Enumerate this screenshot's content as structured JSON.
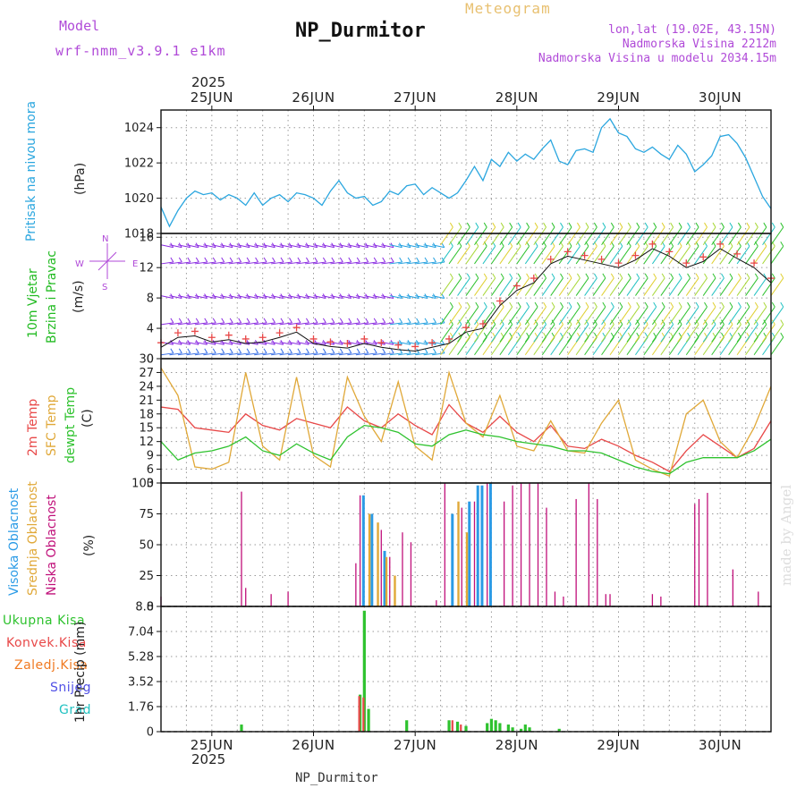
{
  "header": {
    "model_label": "Model",
    "model_name": "wrf-nmm_v3.9.1 e1km",
    "meteogram_label": "Meteogram",
    "station": "NP_Durmitor",
    "coords": "lon,lat (19.02E, 43.15N)",
    "elevation": "Nadmorska Visina 2212m",
    "model_elevation": "Nadmorska Visina u modelu 2034.15m",
    "year": "2025",
    "footer_station": "NP_Durmitor",
    "credit": "made by Angel"
  },
  "colors": {
    "pressure": "#2aa6df",
    "wind_label": "#22bb22",
    "temp2m": "#e84848",
    "sfc": "#e0a838",
    "dewpt": "#2ec22e",
    "high_cloud": "#2b9be6",
    "mid_cloud": "#e0a838",
    "low_cloud": "#c0107a",
    "total_precip": "#2ec22e",
    "conv_precip": "#e84848",
    "frozen": "#f07a22",
    "snow": "#5050e6",
    "hail": "#22c2c2",
    "dir_label": "#b04ad8"
  },
  "days": [
    "25JUN",
    "26JUN",
    "27JUN",
    "28JUN",
    "29JUN",
    "30JUN"
  ],
  "panels": {
    "pressure": {
      "label": "Pritisak na nivou mora",
      "unit": "(hPa)",
      "ticks": [
        "1024",
        "1022",
        "1020",
        "1018"
      ]
    },
    "wind": {
      "label1": "10m Vjetar",
      "label2": "Brzina i Pravac",
      "unit": "(m/s)",
      "ticks": [
        "16",
        "12",
        "8",
        "4",
        "0"
      ],
      "dir_n": "N",
      "dir_w": "W",
      "dir_e": "E",
      "dir_s": "S"
    },
    "temp": {
      "label1": "2m Temp",
      "label2": "SFC Temp",
      "label3": "dewpt Temp",
      "unit": "(C)",
      "ticks": [
        "30",
        "27",
        "24",
        "21",
        "18",
        "15",
        "12",
        "9",
        "6",
        "3"
      ]
    },
    "cloud": {
      "label1": "Visoka Oblacnost",
      "label2": "Srednja Oblacnost",
      "label3": "Niska Oblacnost",
      "unit": "(%)",
      "ticks": [
        "100",
        "75",
        "50",
        "25",
        "0"
      ]
    },
    "precip": {
      "legend": [
        "Ukupna Kisa",
        "Konvek.Kisa",
        "Zaledj.Kisa",
        "Snijeg",
        "Grad"
      ],
      "unit": "1hr Precip (mm)",
      "ticks": [
        "8.8",
        "7.04",
        "5.28",
        "3.52",
        "1.76",
        "0"
      ]
    }
  },
  "chart_data": {
    "type": "line",
    "x_unit": "hours from 25JUN 00 UTC",
    "x_range": [
      -12,
      132
    ],
    "pressure_hpa": {
      "ylim": [
        1018,
        1025
      ],
      "x": [
        -12,
        -10,
        -8,
        -6,
        -4,
        -2,
        0,
        2,
        4,
        6,
        8,
        10,
        12,
        14,
        16,
        18,
        20,
        22,
        24,
        26,
        28,
        30,
        32,
        34,
        36,
        38,
        40,
        42,
        44,
        46,
        48,
        50,
        52,
        54,
        56,
        58,
        60,
        62,
        64,
        66,
        68,
        70,
        72,
        74,
        76,
        78,
        80,
        82,
        84,
        86,
        88,
        90,
        92,
        94,
        96,
        98,
        100,
        102,
        104,
        106,
        108,
        110,
        112,
        114,
        116,
        118,
        120,
        122,
        124,
        126,
        128,
        130,
        132
      ],
      "y": [
        1019.5,
        1018.4,
        1019.3,
        1020.0,
        1020.4,
        1020.2,
        1020.3,
        1019.9,
        1020.2,
        1020.0,
        1019.6,
        1020.3,
        1019.6,
        1020.0,
        1020.2,
        1019.8,
        1020.3,
        1020.2,
        1020.0,
        1019.6,
        1020.4,
        1021.0,
        1020.3,
        1020.0,
        1020.1,
        1019.6,
        1019.8,
        1020.4,
        1020.2,
        1020.7,
        1020.8,
        1020.2,
        1020.6,
        1020.3,
        1020.0,
        1020.3,
        1021.0,
        1021.8,
        1021.0,
        1022.2,
        1021.8,
        1022.6,
        1022.1,
        1022.5,
        1022.2,
        1022.8,
        1023.3,
        1022.1,
        1021.9,
        1022.7,
        1022.8,
        1022.6,
        1024.0,
        1024.5,
        1023.7,
        1023.5,
        1022.8,
        1022.6,
        1022.9,
        1022.5,
        1022.2,
        1023.0,
        1022.5,
        1021.5,
        1021.9,
        1022.4,
        1023.5,
        1023.6,
        1023.1,
        1022.3,
        1021.2,
        1020.1,
        1019.4
      ]
    },
    "wind_speed_ms": {
      "ylim": [
        0,
        16.5
      ],
      "x": [
        -12,
        -8,
        -4,
        0,
        4,
        8,
        12,
        16,
        20,
        24,
        28,
        32,
        36,
        40,
        44,
        48,
        52,
        56,
        60,
        64,
        68,
        72,
        76,
        80,
        84,
        88,
        92,
        96,
        100,
        104,
        108,
        112,
        116,
        120,
        124,
        128,
        132
      ],
      "y": [
        1.5,
        2.8,
        3.0,
        2.2,
        2.5,
        2.0,
        2.2,
        2.8,
        3.5,
        2.0,
        1.6,
        1.4,
        2.0,
        1.5,
        1.2,
        1.0,
        1.5,
        2.0,
        3.5,
        4.0,
        7.0,
        9.0,
        10.0,
        12.5,
        13.5,
        13.0,
        12.5,
        12.0,
        13.0,
        14.5,
        13.5,
        12.0,
        12.8,
        14.5,
        13.2,
        12.0,
        10.0
      ]
    },
    "temperature_c": {
      "ylim": [
        3,
        30
      ],
      "x": [
        -12,
        -8,
        -4,
        0,
        4,
        8,
        12,
        16,
        20,
        24,
        28,
        32,
        36,
        40,
        44,
        48,
        52,
        56,
        60,
        64,
        68,
        72,
        76,
        80,
        84,
        88,
        92,
        96,
        100,
        104,
        108,
        112,
        116,
        120,
        124,
        128,
        132
      ],
      "series": [
        {
          "name": "2m Temp",
          "y": [
            19.5,
            19.0,
            15.0,
            14.5,
            14.0,
            18.0,
            15.5,
            14.5,
            17.0,
            16.0,
            15.0,
            19.5,
            16.5,
            15.0,
            18.0,
            15.5,
            13.5,
            20.0,
            16.0,
            14.0,
            17.5,
            14.0,
            12.0,
            15.5,
            11.0,
            10.5,
            12.5,
            11.0,
            9.0,
            7.5,
            5.5,
            10.0,
            13.5,
            11.0,
            8.5,
            10.5,
            16.5
          ]
        },
        {
          "name": "SFC Temp",
          "y": [
            28.0,
            22.0,
            6.5,
            6.0,
            7.5,
            27.0,
            11.0,
            8.0,
            26.0,
            9.0,
            6.5,
            26.0,
            17.5,
            12.0,
            25.0,
            11.0,
            8.0,
            27.0,
            16.0,
            13.0,
            22.0,
            11.0,
            10.0,
            16.5,
            10.0,
            9.5,
            16.0,
            21.0,
            8.0,
            6.0,
            4.5,
            18.0,
            21.0,
            12.0,
            8.5,
            15.0,
            24.0
          ]
        },
        {
          "name": "dewpt Temp",
          "y": [
            12.0,
            8.0,
            9.5,
            10.0,
            11.0,
            13.0,
            10.0,
            9.0,
            11.5,
            9.5,
            8.0,
            13.0,
            15.5,
            15.0,
            14.0,
            11.5,
            11.0,
            13.5,
            14.5,
            13.5,
            13.0,
            12.0,
            11.5,
            11.0,
            10.0,
            10.0,
            9.5,
            8.0,
            6.5,
            5.5,
            5.0,
            7.5,
            8.5,
            8.5,
            8.5,
            10.0,
            12.5
          ]
        }
      ]
    },
    "cloud_pct": {
      "ylim": [
        0,
        100
      ],
      "high": [
        [
          36,
          90
        ],
        [
          38,
          75
        ],
        [
          41,
          45
        ],
        [
          57,
          75
        ],
        [
          61,
          85
        ],
        [
          63,
          98
        ],
        [
          64,
          98
        ],
        [
          66,
          100
        ]
      ],
      "mid": [
        [
          37,
          75
        ],
        [
          39,
          68
        ],
        [
          41,
          40
        ],
        [
          43,
          25
        ],
        [
          58,
          85
        ],
        [
          60,
          60
        ]
      ],
      "low": [
        [
          -12,
          8
        ],
        [
          7,
          93
        ],
        [
          8,
          15
        ],
        [
          14,
          10
        ],
        [
          18,
          12
        ],
        [
          34,
          35
        ],
        [
          35,
          90
        ],
        [
          40,
          62
        ],
        [
          42,
          40
        ],
        [
          45,
          60
        ],
        [
          47,
          52
        ],
        [
          53,
          5
        ],
        [
          55,
          100
        ],
        [
          59,
          80
        ],
        [
          62,
          85
        ],
        [
          65,
          100
        ],
        [
          69,
          85
        ],
        [
          71,
          98
        ],
        [
          73,
          100
        ],
        [
          75,
          100
        ],
        [
          77,
          100
        ],
        [
          79,
          80
        ],
        [
          81,
          12
        ],
        [
          83,
          8
        ],
        [
          86,
          87
        ],
        [
          89,
          100
        ],
        [
          91,
          87
        ],
        [
          93,
          10
        ],
        [
          94,
          10
        ],
        [
          104,
          10
        ],
        [
          106,
          8
        ],
        [
          114,
          83
        ],
        [
          115,
          87
        ],
        [
          117,
          92
        ],
        [
          123,
          30
        ],
        [
          129,
          12
        ]
      ]
    },
    "precip_mm": {
      "ylim": [
        0,
        8.8
      ],
      "total": [
        [
          7,
          0.5
        ],
        [
          35,
          2.6
        ],
        [
          36,
          8.5
        ],
        [
          37,
          1.6
        ],
        [
          46,
          0.8
        ],
        [
          56,
          0.8
        ],
        [
          58,
          0.7
        ],
        [
          60,
          0.4
        ],
        [
          65,
          0.6
        ],
        [
          66,
          0.9
        ],
        [
          67,
          0.8
        ],
        [
          68,
          0.6
        ],
        [
          70,
          0.5
        ],
        [
          71,
          0.3
        ],
        [
          73,
          0.2
        ],
        [
          74,
          0.5
        ],
        [
          75,
          0.3
        ],
        [
          82,
          0.2
        ]
      ],
      "convective": [
        [
          35,
          2.5
        ],
        [
          36,
          2.4
        ],
        [
          57,
          0.8
        ],
        [
          59,
          0.5
        ]
      ]
    }
  }
}
